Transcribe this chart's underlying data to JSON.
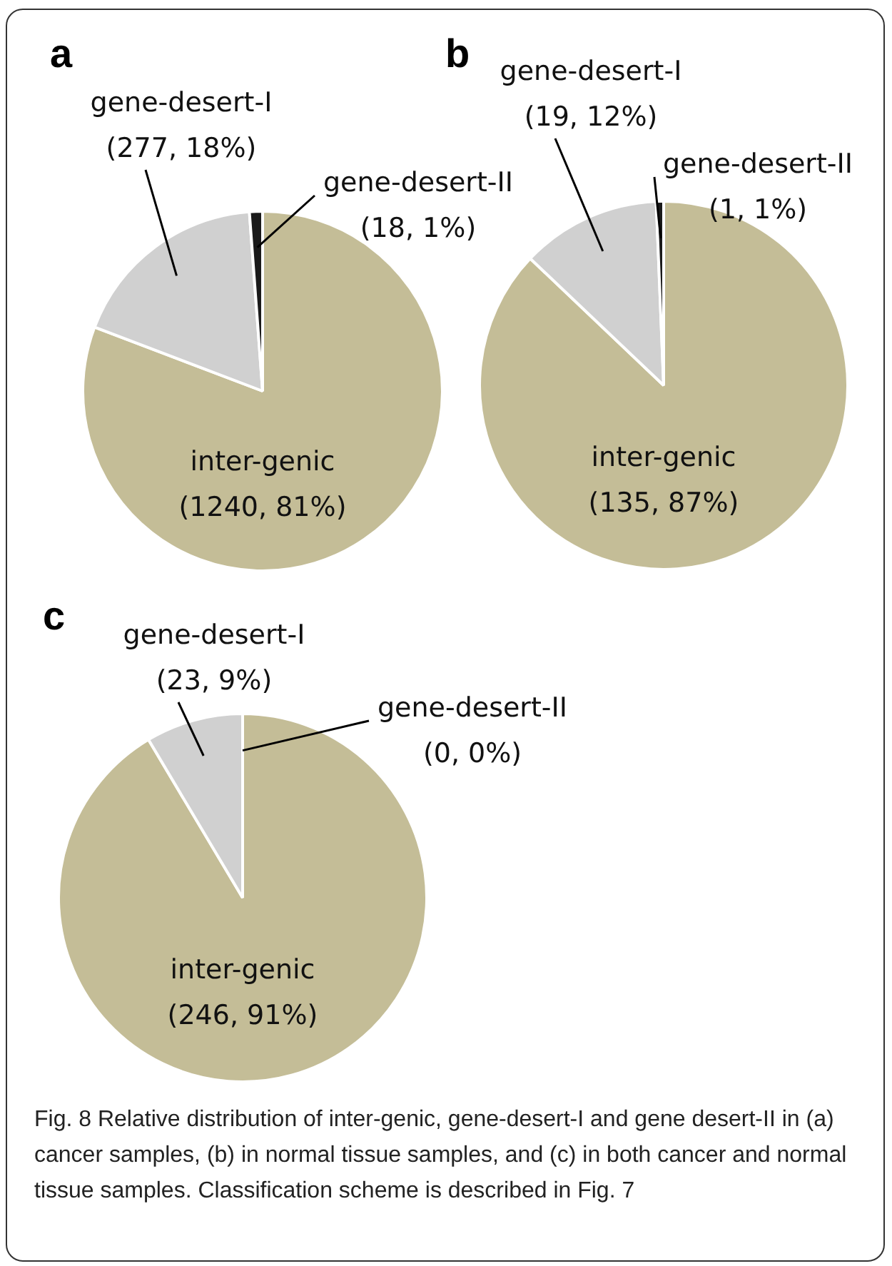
{
  "chart_data": [
    {
      "type": "pie",
      "title": "a",
      "categories": [
        "inter-genic",
        "gene-desert-I",
        "gene-desert-II"
      ],
      "values": [
        1240,
        277,
        18
      ],
      "colors": [
        "#c4bd97",
        "#d0d0d0",
        "#1a1a1a"
      ],
      "value_labels": [
        "(1240, 81%)",
        "(277, 18%)",
        "(18, 1%)"
      ]
    },
    {
      "type": "pie",
      "title": "b",
      "categories": [
        "inter-genic",
        "gene-desert-I",
        "gene-desert-II"
      ],
      "values": [
        135,
        19,
        1
      ],
      "colors": [
        "#c4bd97",
        "#d0d0d0",
        "#1a1a1a"
      ],
      "value_labels": [
        "(135, 87%)",
        "(19, 12%)",
        "(1, 1%)"
      ]
    },
    {
      "type": "pie",
      "title": "c",
      "categories": [
        "inter-genic",
        "gene-desert-I",
        "gene-desert-II"
      ],
      "values": [
        246,
        23,
        0
      ],
      "colors": [
        "#c4bd97",
        "#d0d0d0",
        "#1a1a1a"
      ],
      "value_labels": [
        "(246, 91%)",
        "(23, 9%)",
        "(0, 0%)"
      ],
      "annotations": [
        "Fig. 8 Relative distribution of inter-genic, gene-desert-I and gene desert-II in (a) cancer samples, (b) in normal tissue samples, and (c) in both cancer and normal tissue samples. Classification scheme is described in Fig. 7"
      ]
    }
  ]
}
